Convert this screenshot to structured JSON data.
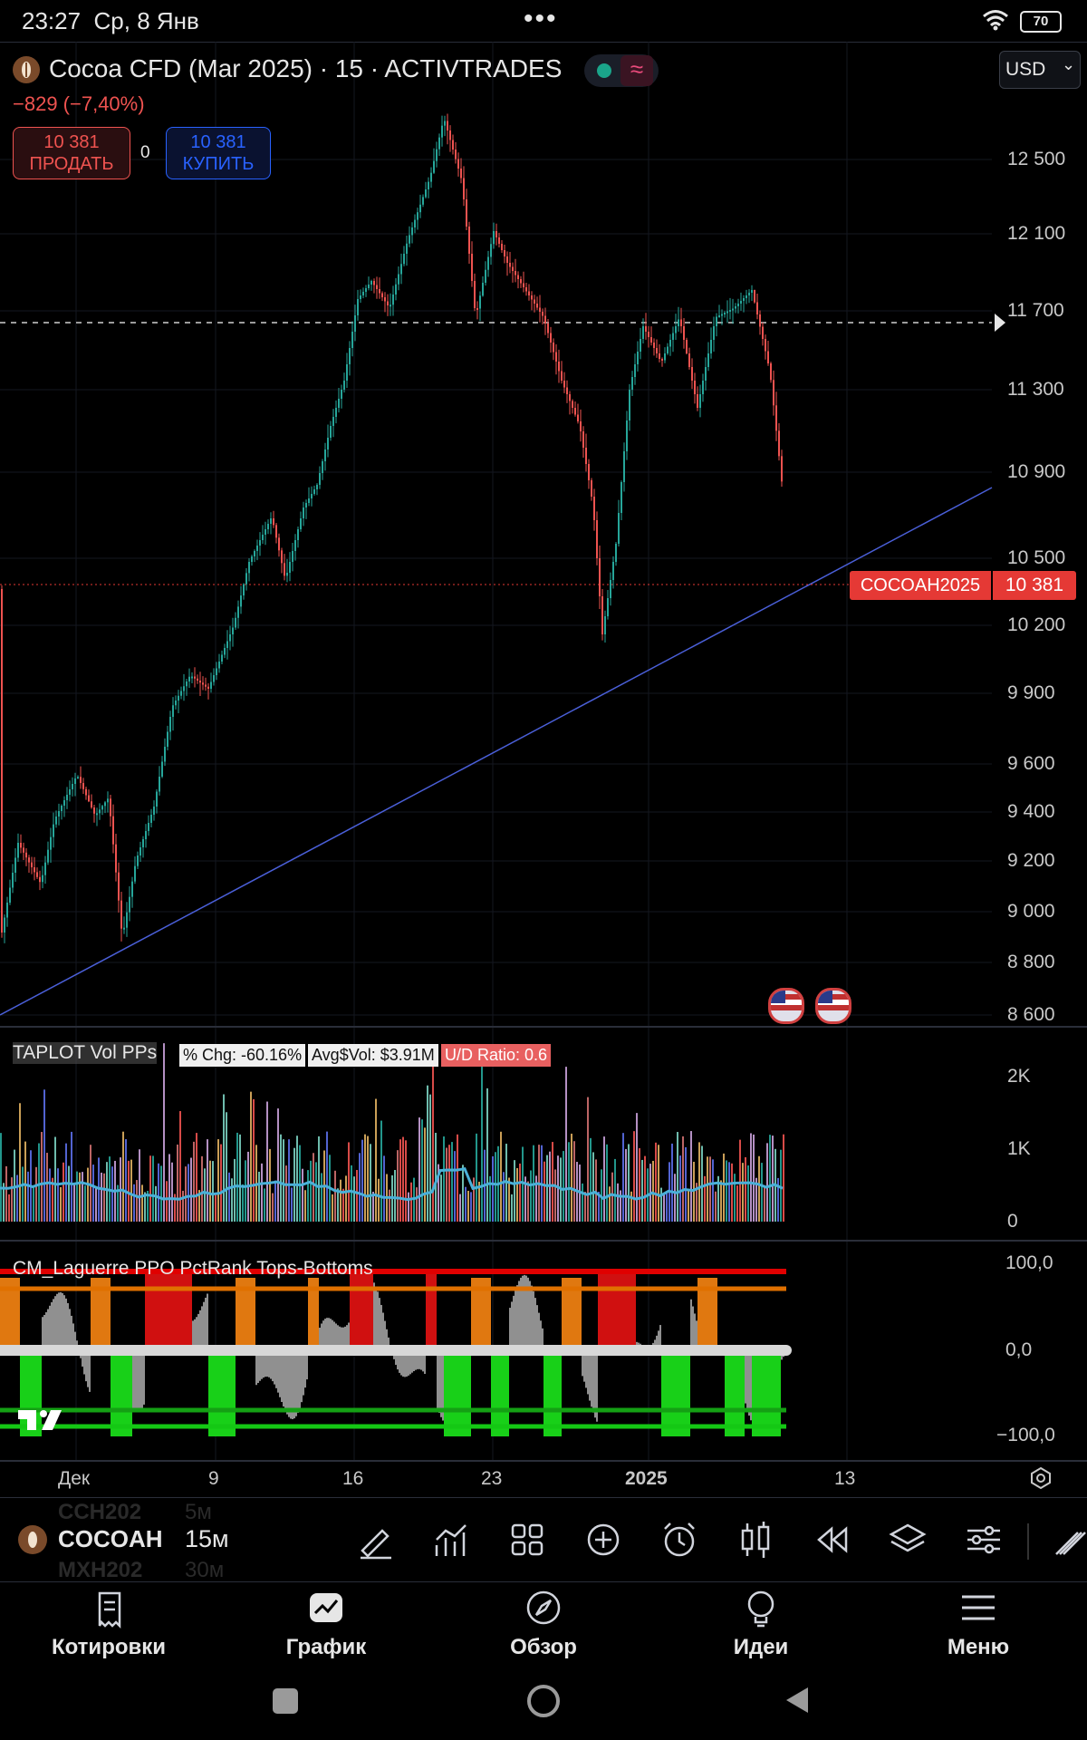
{
  "status_bar": {
    "time": "23:27",
    "date": "Ср, 8 Янв",
    "more": "•••",
    "battery": "70"
  },
  "header": {
    "title": "Cocoa CFD (Mar 2025) · 15 · ACTIVTRADES",
    "change": "−829 (−7,40%)",
    "sell_price": "10 381",
    "sell_label": "ПРОДАТЬ",
    "spread": "0",
    "buy_price": "10 381",
    "buy_label": "КУПИТЬ",
    "currency": "USD",
    "currency_chevron": "⌄",
    "status_icon": "≈"
  },
  "price_axis": [
    "12 500",
    "12 100",
    "11 700",
    "11 300",
    "10 900",
    "10 500",
    "10 200",
    "9 900",
    "9 600",
    "9 400",
    "9 200",
    "9 000",
    "8 800",
    "8 600"
  ],
  "last_price": {
    "symbol": "COCOAH2025",
    "value": "10 381"
  },
  "volume_panel": {
    "title": "TAPLOT Vol PPs",
    "chg_label": "% Chg: -60.16%",
    "avg_label": "Avg$Vol: $3.91M",
    "ud_label": "U/D Ratio: 0.6",
    "axis": [
      "2K",
      "1K",
      "0"
    ]
  },
  "ppo_panel": {
    "title": "CM_Laguerre PPO PctRank Tops-Bottoms",
    "axis": [
      "100,0",
      "0,0",
      "−100,0"
    ]
  },
  "time_axis": [
    "Дек",
    "9",
    "16",
    "23",
    "2025",
    "13"
  ],
  "symbol_bar": {
    "symbol": "COCOAH",
    "interval": "15м",
    "ghost_above_symbol": "CCH202",
    "ghost_above_interval": "5м",
    "ghost_below_symbol": "MXH202",
    "ghost_below_interval": "30м"
  },
  "toolbar_icons": [
    "draw-icon",
    "indicators-icon",
    "templates-icon",
    "add-icon",
    "alert-icon",
    "candle-type-icon",
    "replay-icon",
    "layers-icon",
    "settings-icon"
  ],
  "bottom_nav": [
    {
      "label": "Котировки",
      "icon": "list-icon"
    },
    {
      "label": "График",
      "icon": "chart-icon"
    },
    {
      "label": "Обзор",
      "icon": "compass-icon"
    },
    {
      "label": "Идеи",
      "icon": "bulb-icon"
    },
    {
      "label": "Меню",
      "icon": "menu-icon"
    }
  ],
  "colors": {
    "up": "#26a69a",
    "down": "#ef5350",
    "trendline": "#4a5fd8",
    "price_tag": "#e53935",
    "buy": "#2962ff"
  }
}
